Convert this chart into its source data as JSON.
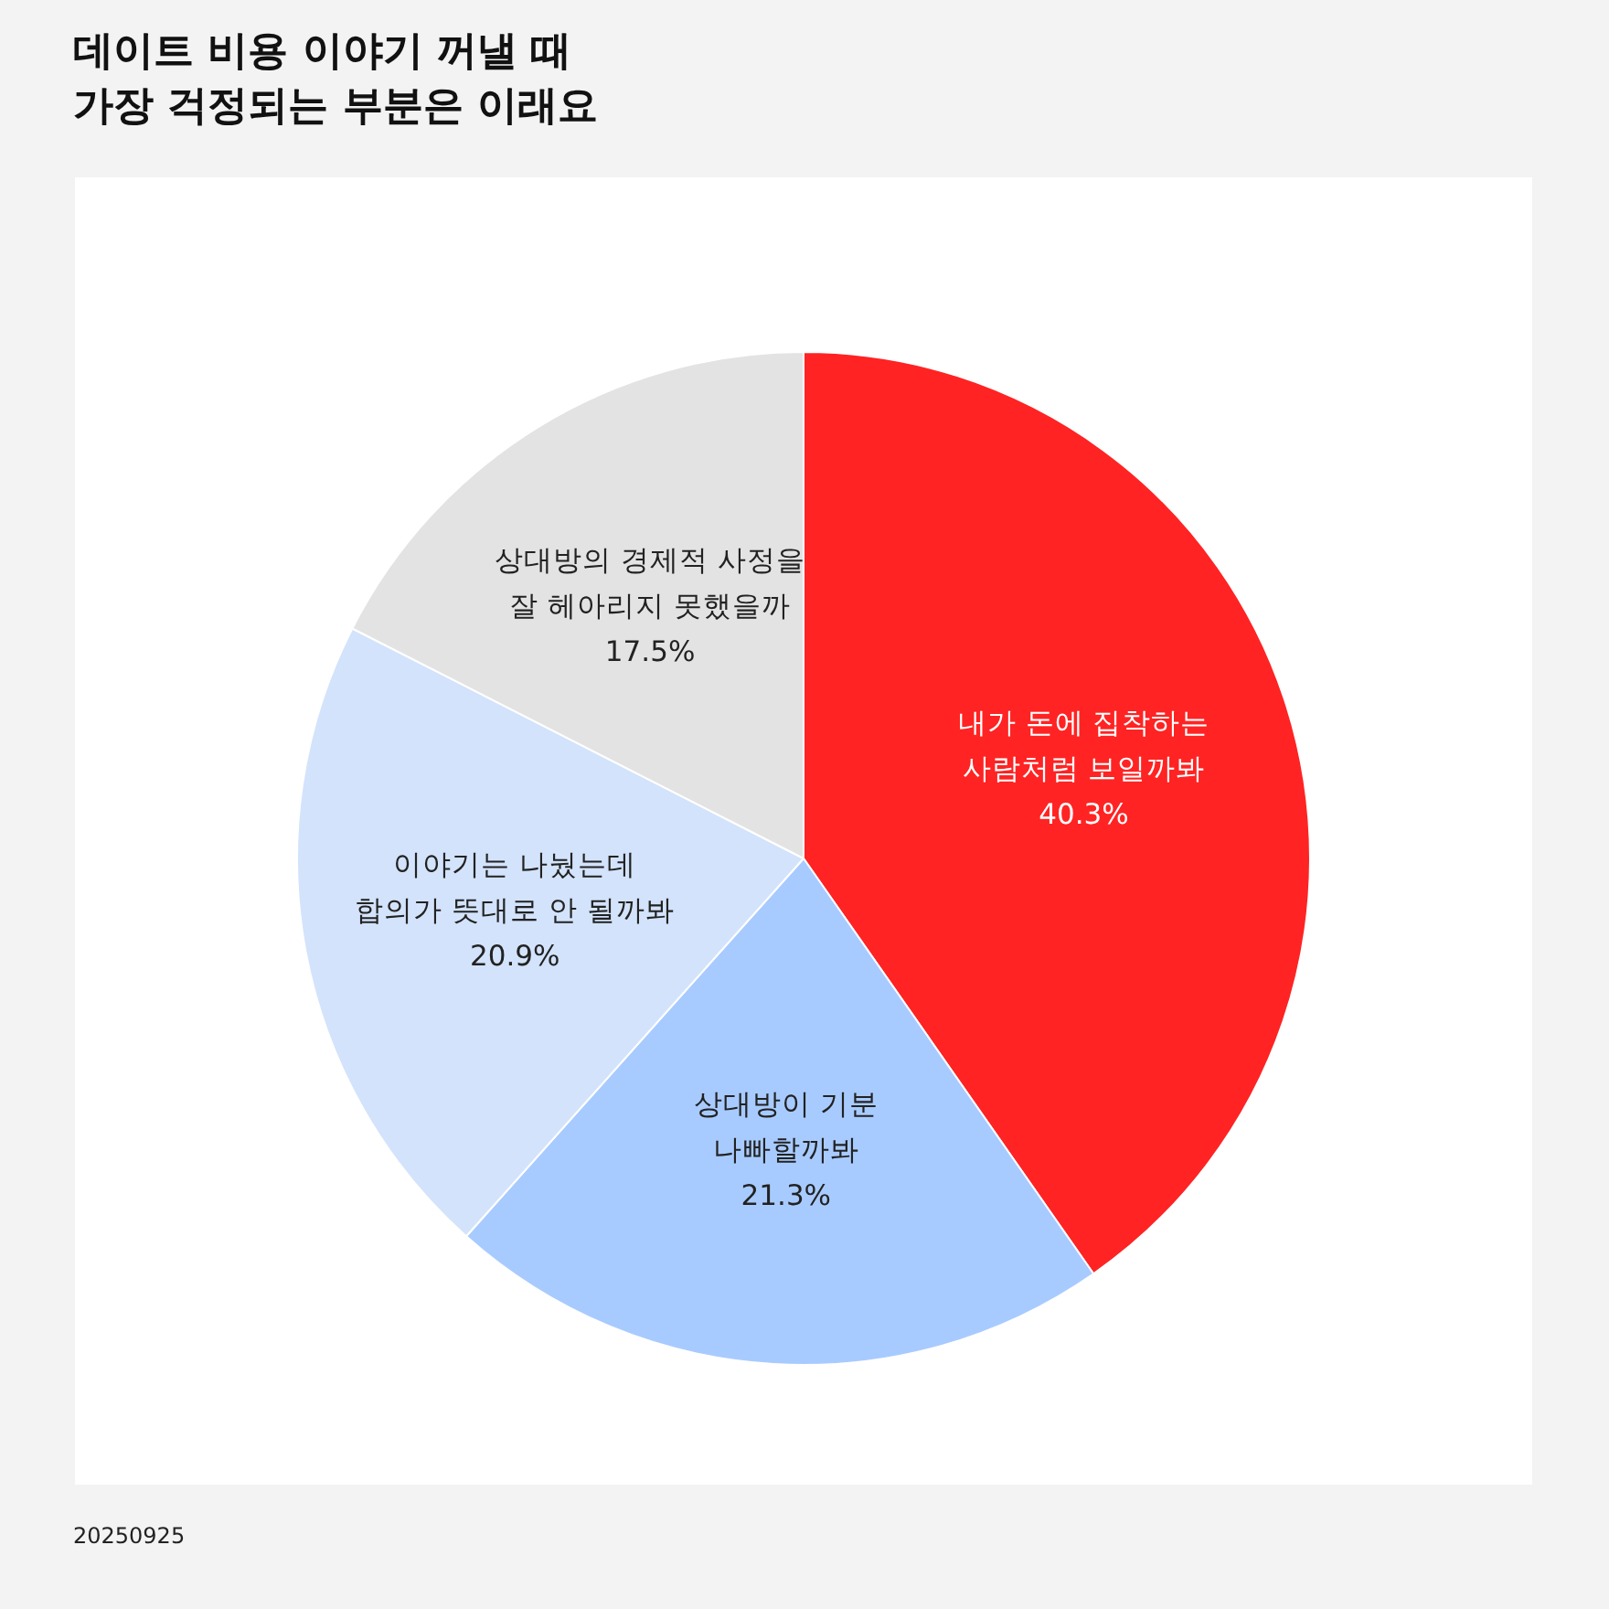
{
  "chart_data": {
    "type": "pie",
    "title": "데이트 비용 이야기 꺼낼 때\n가장 걱정되는 부분은 이래요",
    "categories": [
      "내가 돈에 집착하는\n사람처럼 보일까봐",
      "상대방이 기분\n나빠할까봐",
      "이야기는 나눴는데\n합의가 뜻대로 안 될까봐",
      "상대방의 경제적 사정을\n잘 헤아리지 못했을까"
    ],
    "values": [
      40.3,
      21.3,
      20.9,
      17.5
    ],
    "colors": [
      "#ff2323",
      "#a8cbff",
      "#d3e3fb",
      "#e3e3e3"
    ],
    "value_labels": [
      "40.3%",
      "21.3%",
      "20.9%",
      "17.5%"
    ],
    "legend": false,
    "annotations": [
      "20250925"
    ]
  }
}
